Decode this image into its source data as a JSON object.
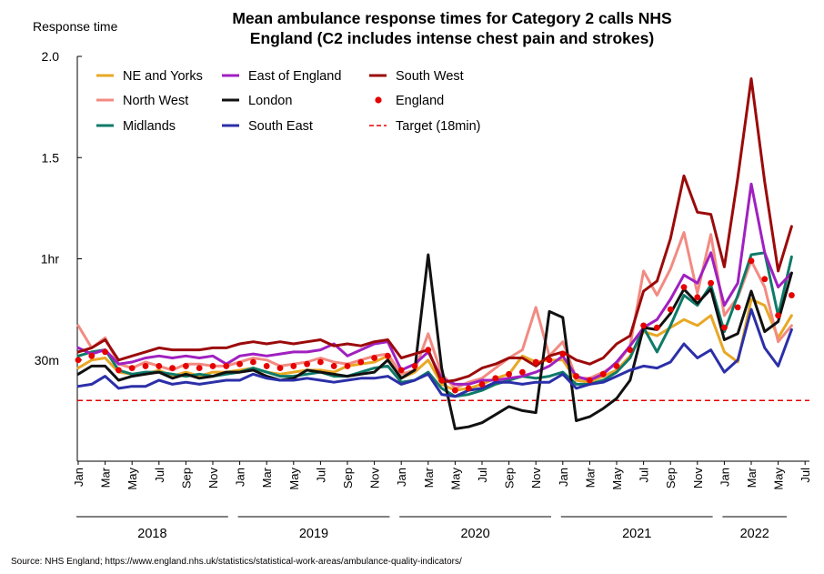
{
  "chart_data": {
    "type": "line",
    "title": "Mean ambulance response times for Category 2 calls NHS England (C2 includes intense chest pain and strokes)",
    "title_lines": [
      "Mean ambulance response times for Category 2 calls NHS",
      "England (C2 includes intense chest pain and strokes)"
    ],
    "ylabel": "Response time",
    "ylim": [
      0,
      2.0
    ],
    "y_ticks": [
      {
        "value": 0.5,
        "label": "30m"
      },
      {
        "value": 1.0,
        "label": "1hr"
      },
      {
        "value": 1.5,
        "label": "1.5"
      },
      {
        "value": 2.0,
        "label": "2.0"
      }
    ],
    "x": [
      "2018-01",
      "2018-02",
      "2018-03",
      "2018-04",
      "2018-05",
      "2018-06",
      "2018-07",
      "2018-08",
      "2018-09",
      "2018-10",
      "2018-11",
      "2018-12",
      "2019-01",
      "2019-02",
      "2019-03",
      "2019-04",
      "2019-05",
      "2019-06",
      "2019-07",
      "2019-08",
      "2019-09",
      "2019-10",
      "2019-11",
      "2019-12",
      "2020-01",
      "2020-02",
      "2020-03",
      "2020-04",
      "2020-05",
      "2020-06",
      "2020-07",
      "2020-08",
      "2020-09",
      "2020-10",
      "2020-11",
      "2020-12",
      "2021-01",
      "2021-02",
      "2021-03",
      "2021-04",
      "2021-05",
      "2021-06",
      "2021-07",
      "2021-08",
      "2021-09",
      "2021-10",
      "2021-11",
      "2021-12",
      "2022-01",
      "2022-02",
      "2022-03",
      "2022-04",
      "2022-05",
      "2022-06"
    ],
    "month_ticks": [
      "Jan",
      "Mar",
      "May",
      "Jul",
      "Sep",
      "Nov",
      "Jan",
      "Mar",
      "May",
      "Jul",
      "Sep",
      "Nov",
      "Jan",
      "Mar",
      "May",
      "Jul",
      "Sep",
      "Nov",
      "Jan",
      "Mar",
      "May",
      "Jul",
      "Sep",
      "Nov",
      "Jan",
      "Mar",
      "May",
      "Jul"
    ],
    "years": [
      "2018",
      "2019",
      "2020",
      "2021",
      "2022"
    ],
    "series": [
      {
        "name": "NE and Yorks",
        "color": "#e8a825",
        "style": "line",
        "values": [
          0.46,
          0.5,
          0.51,
          0.44,
          0.43,
          0.43,
          0.45,
          0.42,
          0.44,
          0.42,
          0.44,
          0.44,
          0.45,
          0.46,
          0.44,
          0.43,
          0.44,
          0.45,
          0.45,
          0.44,
          0.47,
          0.48,
          0.49,
          0.52,
          0.41,
          0.44,
          0.5,
          0.38,
          0.35,
          0.36,
          0.38,
          0.41,
          0.43,
          0.52,
          0.49,
          0.5,
          0.5,
          0.4,
          0.39,
          0.42,
          0.45,
          0.52,
          0.64,
          0.62,
          0.66,
          0.7,
          0.67,
          0.72,
          0.54,
          0.49,
          0.8,
          0.77,
          0.61,
          0.72
        ]
      },
      {
        "name": "North West",
        "color": "#f28b82",
        "style": "line",
        "values": [
          0.67,
          0.56,
          0.61,
          0.48,
          0.46,
          0.49,
          0.47,
          0.45,
          0.48,
          0.48,
          0.47,
          0.47,
          0.49,
          0.51,
          0.5,
          0.47,
          0.48,
          0.49,
          0.51,
          0.49,
          0.48,
          0.5,
          0.52,
          0.53,
          0.43,
          0.45,
          0.63,
          0.43,
          0.36,
          0.39,
          0.41,
          0.46,
          0.51,
          0.55,
          0.76,
          0.52,
          0.59,
          0.41,
          0.41,
          0.44,
          0.48,
          0.57,
          0.94,
          0.82,
          0.95,
          1.13,
          0.83,
          1.12,
          0.72,
          0.81,
          0.99,
          0.86,
          0.59,
          0.67
        ]
      },
      {
        "name": "Midlands",
        "color": "#0e7a68",
        "style": "line",
        "values": [
          0.52,
          0.54,
          0.55,
          0.45,
          0.43,
          0.44,
          0.44,
          0.43,
          0.42,
          0.43,
          0.42,
          0.43,
          0.44,
          0.46,
          0.44,
          0.42,
          0.42,
          0.43,
          0.44,
          0.42,
          0.42,
          0.44,
          0.46,
          0.47,
          0.39,
          0.4,
          0.44,
          0.36,
          0.32,
          0.33,
          0.35,
          0.38,
          0.4,
          0.42,
          0.41,
          0.42,
          0.44,
          0.38,
          0.38,
          0.4,
          0.44,
          0.51,
          0.66,
          0.54,
          0.67,
          0.82,
          0.77,
          0.87,
          0.64,
          0.82,
          1.02,
          1.03,
          0.72,
          1.01
        ]
      },
      {
        "name": "East of England",
        "color": "#a020c0",
        "style": "line",
        "values": [
          0.56,
          0.53,
          0.55,
          0.48,
          0.49,
          0.51,
          0.52,
          0.51,
          0.52,
          0.51,
          0.52,
          0.48,
          0.52,
          0.53,
          0.52,
          0.53,
          0.54,
          0.54,
          0.55,
          0.58,
          0.52,
          0.55,
          0.58,
          0.59,
          0.45,
          0.48,
          0.54,
          0.41,
          0.38,
          0.38,
          0.4,
          0.4,
          0.41,
          0.42,
          0.44,
          0.47,
          0.52,
          0.42,
          0.4,
          0.43,
          0.49,
          0.57,
          0.66,
          0.7,
          0.8,
          0.92,
          0.88,
          1.03,
          0.77,
          0.88,
          1.37,
          1.03,
          0.86,
          0.93
        ]
      },
      {
        "name": "London",
        "color": "#111111",
        "style": "line",
        "values": [
          0.43,
          0.47,
          0.47,
          0.4,
          0.42,
          0.43,
          0.44,
          0.41,
          0.43,
          0.41,
          0.42,
          0.44,
          0.44,
          0.45,
          0.42,
          0.4,
          0.41,
          0.45,
          0.44,
          0.43,
          0.42,
          0.43,
          0.44,
          0.5,
          0.41,
          0.45,
          1.02,
          0.46,
          0.16,
          0.17,
          0.19,
          0.23,
          0.27,
          0.25,
          0.24,
          0.74,
          0.71,
          0.2,
          0.22,
          0.26,
          0.31,
          0.4,
          0.66,
          0.65,
          0.73,
          0.85,
          0.78,
          0.85,
          0.6,
          0.63,
          0.84,
          0.64,
          0.69,
          0.93
        ]
      },
      {
        "name": "South East",
        "color": "#2b2fa8",
        "style": "line",
        "values": [
          0.37,
          0.38,
          0.42,
          0.36,
          0.37,
          0.37,
          0.4,
          0.38,
          0.39,
          0.38,
          0.39,
          0.4,
          0.4,
          0.43,
          0.41,
          0.4,
          0.4,
          0.41,
          0.4,
          0.39,
          0.4,
          0.41,
          0.41,
          0.42,
          0.38,
          0.4,
          0.43,
          0.33,
          0.32,
          0.35,
          0.36,
          0.39,
          0.39,
          0.38,
          0.39,
          0.39,
          0.43,
          0.36,
          0.38,
          0.39,
          0.42,
          0.45,
          0.47,
          0.46,
          0.49,
          0.58,
          0.51,
          0.55,
          0.44,
          0.5,
          0.75,
          0.56,
          0.47,
          0.65
        ]
      },
      {
        "name": "South West",
        "color": "#9b0a0a",
        "style": "line",
        "values": [
          0.54,
          0.56,
          0.6,
          0.5,
          0.52,
          0.54,
          0.56,
          0.55,
          0.55,
          0.55,
          0.56,
          0.56,
          0.58,
          0.59,
          0.58,
          0.59,
          0.58,
          0.59,
          0.6,
          0.57,
          0.58,
          0.57,
          0.59,
          0.6,
          0.51,
          0.53,
          0.55,
          0.39,
          0.4,
          0.42,
          0.46,
          0.48,
          0.51,
          0.51,
          0.47,
          0.52,
          0.54,
          0.5,
          0.48,
          0.51,
          0.58,
          0.62,
          0.84,
          0.89,
          1.1,
          1.41,
          1.23,
          1.22,
          0.96,
          1.4,
          1.89,
          1.38,
          0.94,
          1.16
        ]
      },
      {
        "name": "England",
        "color": "#e60000",
        "style": "dots",
        "values": [
          0.5,
          0.52,
          0.54,
          0.45,
          0.46,
          0.47,
          0.47,
          0.46,
          0.47,
          0.46,
          0.47,
          0.47,
          0.48,
          0.49,
          0.47,
          0.46,
          0.47,
          0.48,
          0.49,
          0.47,
          0.47,
          0.49,
          0.51,
          0.52,
          0.45,
          0.47,
          0.55,
          0.4,
          0.35,
          0.36,
          0.38,
          0.41,
          0.43,
          0.44,
          0.49,
          0.5,
          0.53,
          0.42,
          0.4,
          0.43,
          0.47,
          0.55,
          0.67,
          0.66,
          0.75,
          0.86,
          0.81,
          0.88,
          0.66,
          0.76,
          0.99,
          0.9,
          0.72,
          0.82
        ]
      },
      {
        "name": "Target (18min)",
        "color": "#e60000",
        "style": "dashed",
        "value": 0.3
      }
    ],
    "legend_placement": "top-left",
    "grid": false
  },
  "source_note": "Source: NHS England; https://www.england.nhs.uk/statistics/statistical-work-areas/ambulance-quality-indicators/"
}
